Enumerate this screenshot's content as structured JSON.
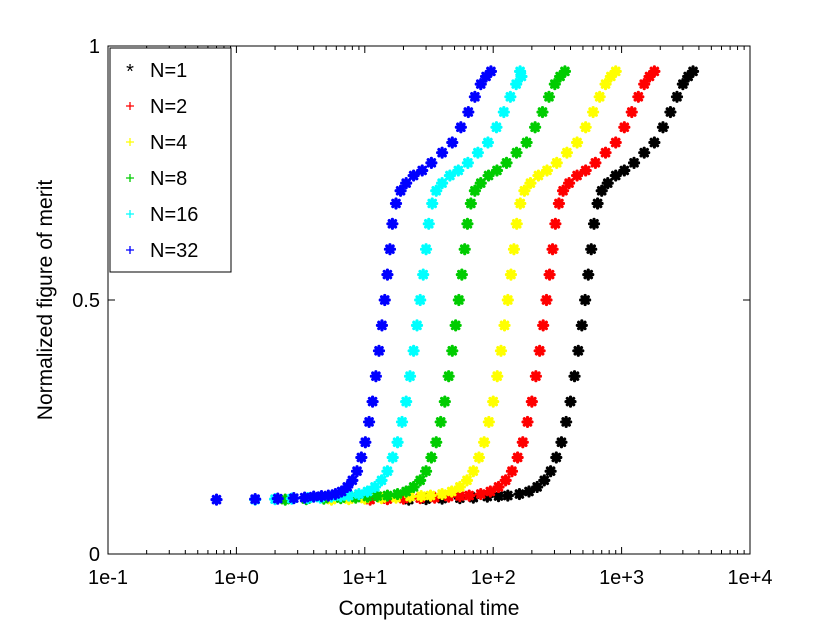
{
  "chart_data": {
    "type": "scatter",
    "title": "",
    "xlabel": "Computational time",
    "ylabel": "Normalized figure of merit",
    "x_scale": "log",
    "xlim": [
      0.1,
      10000
    ],
    "ylim": [
      0,
      1
    ],
    "x_ticks": [
      "1e-1",
      "1e+0",
      "1e+1",
      "1e+2",
      "1e+3",
      "1e+4"
    ],
    "y_ticks": [
      "0",
      "0.5",
      "1"
    ],
    "grid": false,
    "legend_position": "top-left",
    "series": [
      {
        "name": "N=1",
        "color": "#000000",
        "marker": "*",
        "points": [
          [
            22.0,
            0.107
          ],
          [
            30,
            0.108
          ],
          [
            40,
            0.109
          ],
          [
            55,
            0.11
          ],
          [
            70,
            0.111
          ],
          [
            90,
            0.113
          ],
          [
            110,
            0.114
          ],
          [
            130,
            0.115
          ],
          [
            160,
            0.118
          ],
          [
            190,
            0.123
          ],
          [
            220,
            0.132
          ],
          [
            250,
            0.145
          ],
          [
            280,
            0.163
          ],
          [
            310,
            0.19
          ],
          [
            340,
            0.22
          ],
          [
            370,
            0.26
          ],
          [
            400,
            0.3
          ],
          [
            430,
            0.35
          ],
          [
            460,
            0.4
          ],
          [
            490,
            0.45
          ],
          [
            520,
            0.5
          ],
          [
            550,
            0.55
          ],
          [
            580,
            0.6
          ],
          [
            610,
            0.65
          ],
          [
            650,
            0.69
          ],
          [
            700,
            0.715
          ],
          [
            780,
            0.73
          ],
          [
            900,
            0.745
          ],
          [
            1050,
            0.755
          ],
          [
            1250,
            0.77
          ],
          [
            1500,
            0.79
          ],
          [
            1800,
            0.81
          ],
          [
            2100,
            0.84
          ],
          [
            2400,
            0.87
          ],
          [
            2700,
            0.9
          ],
          [
            3000,
            0.925
          ],
          [
            3300,
            0.94
          ],
          [
            3600,
            0.95
          ]
        ]
      },
      {
        "name": "N=2",
        "color": "#ff0000",
        "marker": "+",
        "points": [
          [
            11.0,
            0.107
          ],
          [
            15,
            0.108
          ],
          [
            20,
            0.109
          ],
          [
            27,
            0.11
          ],
          [
            35,
            0.111
          ],
          [
            45,
            0.113
          ],
          [
            55,
            0.114
          ],
          [
            65,
            0.115
          ],
          [
            80,
            0.118
          ],
          [
            95,
            0.123
          ],
          [
            110,
            0.132
          ],
          [
            125,
            0.145
          ],
          [
            140,
            0.163
          ],
          [
            155,
            0.19
          ],
          [
            170,
            0.22
          ],
          [
            185,
            0.26
          ],
          [
            200,
            0.3
          ],
          [
            215,
            0.35
          ],
          [
            230,
            0.4
          ],
          [
            245,
            0.45
          ],
          [
            260,
            0.5
          ],
          [
            275,
            0.55
          ],
          [
            290,
            0.6
          ],
          [
            305,
            0.65
          ],
          [
            325,
            0.69
          ],
          [
            350,
            0.715
          ],
          [
            390,
            0.73
          ],
          [
            450,
            0.745
          ],
          [
            525,
            0.755
          ],
          [
            625,
            0.77
          ],
          [
            750,
            0.79
          ],
          [
            900,
            0.81
          ],
          [
            1050,
            0.84
          ],
          [
            1200,
            0.87
          ],
          [
            1350,
            0.9
          ],
          [
            1500,
            0.925
          ],
          [
            1650,
            0.94
          ],
          [
            1800,
            0.95
          ]
        ]
      },
      {
        "name": "N=4",
        "color": "#ffff00",
        "marker": "+",
        "points": [
          [
            5.5,
            0.107
          ],
          [
            7.5,
            0.108
          ],
          [
            10,
            0.109
          ],
          [
            13.5,
            0.11
          ],
          [
            17.5,
            0.111
          ],
          [
            22.5,
            0.113
          ],
          [
            27.5,
            0.114
          ],
          [
            32.5,
            0.115
          ],
          [
            40,
            0.118
          ],
          [
            47.5,
            0.123
          ],
          [
            55,
            0.132
          ],
          [
            62.5,
            0.145
          ],
          [
            70,
            0.163
          ],
          [
            77.5,
            0.19
          ],
          [
            85,
            0.22
          ],
          [
            92.5,
            0.26
          ],
          [
            100,
            0.3
          ],
          [
            107.5,
            0.35
          ],
          [
            115,
            0.4
          ],
          [
            122.5,
            0.45
          ],
          [
            130,
            0.5
          ],
          [
            137.5,
            0.55
          ],
          [
            145,
            0.6
          ],
          [
            152.5,
            0.65
          ],
          [
            162.5,
            0.69
          ],
          [
            175,
            0.715
          ],
          [
            195,
            0.73
          ],
          [
            225,
            0.745
          ],
          [
            262.5,
            0.755
          ],
          [
            312.5,
            0.77
          ],
          [
            375,
            0.79
          ],
          [
            450,
            0.81
          ],
          [
            525,
            0.84
          ],
          [
            600,
            0.87
          ],
          [
            675,
            0.9
          ],
          [
            750,
            0.925
          ],
          [
            825,
            0.94
          ],
          [
            900,
            0.95
          ]
        ]
      },
      {
        "name": "N=8",
        "color": "#00cc00",
        "marker": "+",
        "points": [
          [
            2.4,
            0.107
          ],
          [
            3.5,
            0.108
          ],
          [
            4.8,
            0.109
          ],
          [
            6.5,
            0.11
          ],
          [
            8.5,
            0.111
          ],
          [
            10.5,
            0.113
          ],
          [
            12.5,
            0.114
          ],
          [
            15,
            0.115
          ],
          [
            18,
            0.118
          ],
          [
            21,
            0.123
          ],
          [
            24,
            0.132
          ],
          [
            27,
            0.145
          ],
          [
            30,
            0.163
          ],
          [
            33,
            0.19
          ],
          [
            36,
            0.22
          ],
          [
            39,
            0.26
          ],
          [
            42,
            0.3
          ],
          [
            45,
            0.35
          ],
          [
            48,
            0.4
          ],
          [
            51,
            0.45
          ],
          [
            54,
            0.5
          ],
          [
            57,
            0.55
          ],
          [
            60,
            0.6
          ],
          [
            63,
            0.65
          ],
          [
            67,
            0.69
          ],
          [
            72,
            0.715
          ],
          [
            80,
            0.73
          ],
          [
            92,
            0.745
          ],
          [
            107,
            0.755
          ],
          [
            127,
            0.77
          ],
          [
            152,
            0.79
          ],
          [
            182,
            0.81
          ],
          [
            212,
            0.84
          ],
          [
            242,
            0.87
          ],
          [
            272,
            0.9
          ],
          [
            302,
            0.925
          ],
          [
            332,
            0.94
          ],
          [
            362,
            0.95
          ]
        ]
      },
      {
        "name": "N=16",
        "color": "#00ffff",
        "marker": "+",
        "points": [
          [
            1.4,
            0.107
          ],
          [
            2.0,
            0.108
          ],
          [
            2.7,
            0.109
          ],
          [
            3.6,
            0.11
          ],
          [
            4.5,
            0.111
          ],
          [
            5.5,
            0.113
          ],
          [
            6.5,
            0.114
          ],
          [
            7.5,
            0.115
          ],
          [
            9,
            0.118
          ],
          [
            10.5,
            0.123
          ],
          [
            12,
            0.132
          ],
          [
            13.5,
            0.145
          ],
          [
            15,
            0.163
          ],
          [
            16.5,
            0.19
          ],
          [
            18,
            0.22
          ],
          [
            19.5,
            0.26
          ],
          [
            21,
            0.3
          ],
          [
            22.5,
            0.35
          ],
          [
            24,
            0.4
          ],
          [
            25.5,
            0.45
          ],
          [
            27,
            0.5
          ],
          [
            28.5,
            0.55
          ],
          [
            30,
            0.6
          ],
          [
            31.5,
            0.65
          ],
          [
            33.5,
            0.69
          ],
          [
            36,
            0.715
          ],
          [
            40,
            0.73
          ],
          [
            46,
            0.745
          ],
          [
            53.5,
            0.755
          ],
          [
            63.5,
            0.77
          ],
          [
            76,
            0.79
          ],
          [
            91,
            0.81
          ],
          [
            106,
            0.84
          ],
          [
            121,
            0.87
          ],
          [
            136,
            0.9
          ],
          [
            151,
            0.925
          ],
          [
            166,
            0.94
          ],
          [
            162,
            0.95
          ]
        ]
      },
      {
        "name": "N=32",
        "color": "#0000ff",
        "marker": "+",
        "points": [
          [
            0.7,
            0.107
          ],
          [
            1.4,
            0.108
          ],
          [
            2.1,
            0.109
          ],
          [
            2.8,
            0.11
          ],
          [
            3.4,
            0.111
          ],
          [
            4.0,
            0.113
          ],
          [
            4.6,
            0.114
          ],
          [
            5.2,
            0.115
          ],
          [
            5.9,
            0.118
          ],
          [
            6.6,
            0.123
          ],
          [
            7.3,
            0.132
          ],
          [
            8.0,
            0.145
          ],
          [
            8.7,
            0.163
          ],
          [
            9.4,
            0.19
          ],
          [
            10.1,
            0.22
          ],
          [
            10.8,
            0.26
          ],
          [
            11.5,
            0.3
          ],
          [
            12.2,
            0.35
          ],
          [
            12.9,
            0.4
          ],
          [
            13.6,
            0.45
          ],
          [
            14.3,
            0.5
          ],
          [
            15.0,
            0.55
          ],
          [
            15.7,
            0.6
          ],
          [
            16.4,
            0.65
          ],
          [
            17.5,
            0.69
          ],
          [
            19,
            0.715
          ],
          [
            21,
            0.73
          ],
          [
            24,
            0.745
          ],
          [
            28,
            0.755
          ],
          [
            33,
            0.77
          ],
          [
            40,
            0.79
          ],
          [
            48,
            0.81
          ],
          [
            56,
            0.84
          ],
          [
            64,
            0.87
          ],
          [
            72,
            0.9
          ],
          [
            80,
            0.925
          ],
          [
            88,
            0.94
          ],
          [
            96,
            0.95
          ]
        ]
      }
    ]
  }
}
